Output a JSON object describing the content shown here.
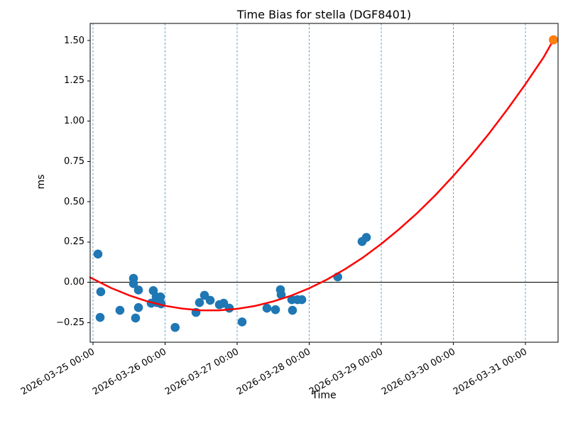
{
  "chart_data": {
    "type": "scatter",
    "title": "Time Bias for stella (DGF8401)",
    "xlabel": "Time",
    "ylabel": "ms",
    "x_epoch": "2026-03-25 00:00",
    "x_tick_labels": [
      "2026-03-25 00:00",
      "2026-03-26 00:00",
      "2026-03-27 00:00",
      "2026-03-28 00:00",
      "2026-03-29 00:00",
      "2026-03-30 00:00",
      "2026-03-31 00:00"
    ],
    "x_tick_days": [
      0,
      1,
      2,
      3,
      4,
      5,
      6
    ],
    "y_tick_values": [
      1.5,
      1.25,
      1.0,
      0.75,
      0.5,
      0.25,
      0.0,
      -0.25
    ],
    "y_tick_labels": [
      "1.50",
      "1.25",
      "1.00",
      "0.75",
      "0.50",
      "0.25",
      "0.00",
      "−0.25"
    ],
    "xlim_days": [
      -0.039,
      6.453
    ],
    "ylim": [
      -0.372,
      1.606
    ],
    "grid": "vertical-dashed-at-each-day",
    "zero_line": true,
    "legend": "none",
    "colors": {
      "observations": "#1f77b4",
      "fit_curve": "#ff0000",
      "prediction": "#ff7f0e",
      "gridline": "#63a0ca",
      "zero_line": "#000000",
      "spine": "#000000"
    },
    "series": [
      {
        "name": "observations",
        "type": "scatter",
        "color": "#1f77b4",
        "points": [
          {
            "time": "2026-03-25 01:39",
            "t": 0.069,
            "ms": 0.175
          },
          {
            "time": "2026-03-25 02:23",
            "t": 0.099,
            "ms": -0.218
          },
          {
            "time": "2026-03-25 02:36",
            "t": 0.108,
            "ms": -0.059
          },
          {
            "time": "2026-03-25 08:59",
            "t": 0.374,
            "ms": -0.174
          },
          {
            "time": "2026-03-25 13:29",
            "t": 0.562,
            "ms": 0.024
          },
          {
            "time": "2026-03-25 13:29",
            "t": 0.562,
            "ms": -0.008
          },
          {
            "time": "2026-03-25 14:11",
            "t": 0.591,
            "ms": -0.222
          },
          {
            "time": "2026-03-25 15:09",
            "t": 0.631,
            "ms": -0.048
          },
          {
            "time": "2026-03-25 15:09",
            "t": 0.631,
            "ms": -0.157
          },
          {
            "time": "2026-03-25 19:24",
            "t": 0.808,
            "ms": -0.13
          },
          {
            "time": "2026-03-25 20:05",
            "t": 0.837,
            "ms": -0.052
          },
          {
            "time": "2026-03-25 21:03",
            "t": 0.877,
            "ms": -0.091
          },
          {
            "time": "2026-03-25 21:17",
            "t": 0.887,
            "ms": -0.126
          },
          {
            "time": "2026-03-25 22:28",
            "t": 0.936,
            "ms": -0.091
          },
          {
            "time": "2026-03-25 22:42",
            "t": 0.946,
            "ms": -0.134
          },
          {
            "time": "2026-03-26 03:22",
            "t": 1.14,
            "ms": -0.28
          },
          {
            "time": "2026-03-26 10:18",
            "t": 1.429,
            "ms": -0.187
          },
          {
            "time": "2026-03-26 11:28",
            "t": 1.478,
            "ms": -0.126
          },
          {
            "time": "2026-03-26 13:08",
            "t": 1.547,
            "ms": -0.081
          },
          {
            "time": "2026-03-26 15:01",
            "t": 1.626,
            "ms": -0.112
          },
          {
            "time": "2026-03-26 18:06",
            "t": 1.754,
            "ms": -0.139
          },
          {
            "time": "2026-03-26 19:31",
            "t": 1.813,
            "ms": -0.13
          },
          {
            "time": "2026-03-26 21:24",
            "t": 1.892,
            "ms": -0.161
          },
          {
            "time": "2026-03-27 01:39",
            "t": 2.069,
            "ms": -0.246
          },
          {
            "time": "2026-03-27 09:56",
            "t": 2.414,
            "ms": -0.161
          },
          {
            "time": "2026-03-27 12:46",
            "t": 2.532,
            "ms": -0.17
          },
          {
            "time": "2026-03-27 14:25",
            "t": 2.601,
            "ms": -0.046
          },
          {
            "time": "2026-03-27 14:40",
            "t": 2.611,
            "ms": -0.077
          },
          {
            "time": "2026-03-27 18:13",
            "t": 2.759,
            "ms": -0.108
          },
          {
            "time": "2026-03-27 18:26",
            "t": 2.768,
            "ms": -0.174
          },
          {
            "time": "2026-03-27 20:05",
            "t": 2.837,
            "ms": -0.108
          },
          {
            "time": "2026-03-27 21:32",
            "t": 2.897,
            "ms": -0.108
          },
          {
            "time": "2026-03-28 09:30",
            "t": 3.396,
            "ms": 0.033
          },
          {
            "time": "2026-03-28 17:37",
            "t": 3.734,
            "ms": 0.253
          },
          {
            "time": "2026-03-28 19:02",
            "t": 3.793,
            "ms": 0.278
          }
        ]
      },
      {
        "name": "polynomial-fit",
        "type": "line",
        "color": "#ff0000",
        "samples": [
          [
            -0.039,
            0.03
          ],
          [
            0.25,
            -0.035
          ],
          [
            0.5,
            -0.081
          ],
          [
            0.75,
            -0.118
          ],
          [
            1.0,
            -0.146
          ],
          [
            1.25,
            -0.164
          ],
          [
            1.5,
            -0.174
          ],
          [
            1.75,
            -0.174
          ],
          [
            2.0,
            -0.165
          ],
          [
            2.25,
            -0.147
          ],
          [
            2.5,
            -0.119
          ],
          [
            2.75,
            -0.083
          ],
          [
            3.0,
            -0.037
          ],
          [
            3.25,
            0.018
          ],
          [
            3.5,
            0.082
          ],
          [
            3.75,
            0.155
          ],
          [
            4.0,
            0.238
          ],
          [
            4.25,
            0.33
          ],
          [
            4.5,
            0.43
          ],
          [
            4.75,
            0.54
          ],
          [
            5.0,
            0.66
          ],
          [
            5.25,
            0.788
          ],
          [
            5.5,
            0.926
          ],
          [
            5.75,
            1.073
          ],
          [
            6.0,
            1.229
          ],
          [
            6.25,
            1.394
          ],
          [
            6.389,
            1.504
          ]
        ]
      },
      {
        "name": "prediction",
        "type": "scatter",
        "color": "#ff7f0e",
        "points": [
          {
            "time": "2026-03-31 09:20",
            "t": 6.389,
            "ms": 1.504
          }
        ]
      }
    ]
  }
}
